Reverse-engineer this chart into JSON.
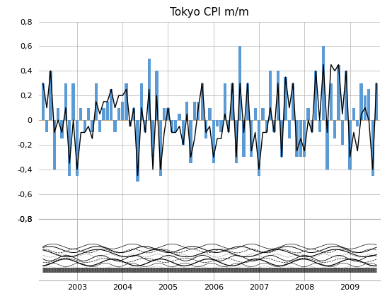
{
  "title": "Tokyo CPI m/m",
  "bar_color": "#5B9BD5",
  "line_color": "#000000",
  "ylim_main": [
    -0.8,
    0.8
  ],
  "yticks_main": [
    -0.8,
    -0.6,
    -0.4,
    -0.2,
    0.0,
    0.2,
    0.4,
    0.6,
    0.8
  ],
  "ytick_labels_main": [
    "-0,8",
    "-0,6",
    "-0,4",
    "-0,2",
    "0",
    "0,2",
    "0,4",
    "0,6",
    "0,8"
  ],
  "bar_values": [
    0.3,
    -0.1,
    0.4,
    -0.4,
    0.1,
    -0.15,
    0.3,
    -0.45,
    0.3,
    -0.45,
    0.1,
    -0.1,
    0.1,
    -0.1,
    0.3,
    -0.1,
    0.1,
    0.15,
    0.25,
    -0.1,
    0.1,
    0.15,
    0.3,
    -0.05,
    0.1,
    -0.5,
    0.3,
    -0.1,
    0.5,
    -0.3,
    0.4,
    -0.45,
    0.1,
    0.1,
    -0.1,
    -0.1,
    0.05,
    -0.2,
    0.15,
    -0.35,
    0.15,
    0.15,
    0.3,
    -0.15,
    0.1,
    -0.35,
    -0.05,
    -0.1,
    0.3,
    -0.1,
    0.3,
    -0.35,
    0.6,
    -0.3,
    0.3,
    -0.3,
    0.1,
    -0.45,
    0.1,
    -0.1,
    0.4,
    -0.1,
    0.4,
    -0.3,
    0.35,
    -0.15,
    0.3,
    -0.3,
    -0.3,
    -0.3,
    0.1,
    -0.1,
    0.4,
    -0.1,
    0.6,
    -0.4,
    0.3,
    -0.15,
    0.45,
    -0.2,
    0.4,
    -0.4,
    0.1,
    -0.05,
    0.3,
    0.2,
    0.25,
    -0.45,
    0.3
  ],
  "line_values": [
    0.3,
    0.1,
    0.4,
    -0.1,
    0.0,
    -0.1,
    0.1,
    -0.35,
    0.0,
    -0.4,
    -0.1,
    -0.1,
    -0.05,
    -0.15,
    0.15,
    0.05,
    0.15,
    0.15,
    0.25,
    0.1,
    0.2,
    0.2,
    0.25,
    -0.05,
    0.1,
    -0.45,
    0.1,
    -0.1,
    0.25,
    -0.4,
    0.2,
    -0.4,
    -0.1,
    0.1,
    -0.1,
    -0.1,
    -0.05,
    -0.2,
    0.05,
    -0.3,
    -0.15,
    0.1,
    0.3,
    -0.1,
    -0.05,
    -0.3,
    -0.15,
    -0.15,
    0.05,
    -0.1,
    0.3,
    -0.3,
    0.3,
    -0.1,
    0.3,
    -0.25,
    -0.1,
    -0.4,
    -0.1,
    -0.1,
    0.1,
    -0.1,
    0.3,
    -0.3,
    0.35,
    0.1,
    0.3,
    -0.25,
    -0.15,
    -0.25,
    0.0,
    -0.1,
    0.4,
    0.0,
    0.45,
    -0.1,
    0.45,
    0.4,
    0.45,
    0.05,
    0.4,
    -0.3,
    -0.1,
    -0.25,
    0.05,
    0.1,
    0.0,
    -0.4,
    0.3
  ],
  "year_tick_pos": [
    9,
    21,
    33,
    45,
    57,
    69,
    81
  ],
  "year_labels": [
    "2003",
    "2004",
    "2005",
    "2006",
    "2007",
    "2008",
    "2009"
  ]
}
